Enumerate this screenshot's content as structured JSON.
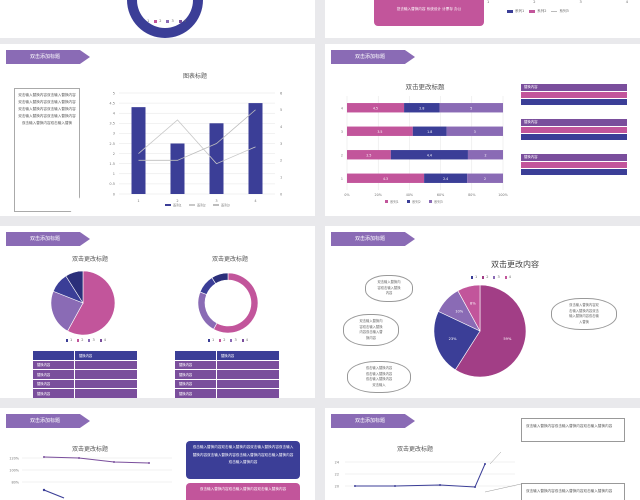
{
  "tag_label": "双击添加标题",
  "slide1": {
    "legend": [
      "1",
      "2",
      "3",
      "4"
    ]
  },
  "slide2": {
    "note": "您去输入替换内容 系统设计 计票存 办公",
    "tick_labels": [
      "1",
      "2",
      "3",
      "4"
    ],
    "legend": [
      "系列1",
      "系列2",
      "系列3"
    ]
  },
  "slide3": {
    "textbox": "双击输入替换内容双击输入替换内容双击输入替换内容双击输入替换内容双击输入替换内容双击输入替换内容双击输入替换内容双击输入替换内容双击输入替换内容双击输入替换",
    "chart_title": "图表标题",
    "legend": [
      "系列1",
      "系列2",
      "系列3"
    ]
  },
  "slide4": {
    "chart_title": "双击更改标题",
    "legend": [
      "系列1",
      "系列2",
      "系列3"
    ],
    "info_header": "替换内容",
    "info_rows": 3
  },
  "slide5": {
    "chart1_title": "双击更改标题",
    "chart2_title": "双击更改标题",
    "legend": [
      "1",
      "2",
      "3",
      "4"
    ],
    "table_header": "替换内容",
    "table_row_label": "替换内容",
    "table_rows": 4
  },
  "slide6": {
    "title": "双击更改内容",
    "legend": [
      "1",
      "2",
      "3",
      "4"
    ],
    "cloud1": "双击输入替换内\n容双击输入替换\n内容",
    "cloud2": "双击输入替换内\n容双击输入替换\n内容双击输入替\n换内容",
    "cloud3": "双击输入替换内容\n双击输入替换内容\n双击输入替换内容\n双击输入",
    "cloud4": "双击输入替换内容双\n击输入替换内容双击\n输入替换内容双击输\n入替换"
  },
  "slide7": {
    "chart_title": "双击更改标题",
    "box1": "双击输入替换内容双击输入替换内容双击输入替换内容双击输入替换内容双击输入替换内容双击输入替换内容双击输入替换内容双击输入替换内容",
    "box2": "双击输入替换内容双击输入替换内容双击输入替换内容"
  },
  "slide8": {
    "chart_title": "双击更改标题",
    "box1": "双击输入替换内容双击输入替换内容双击输入替换内容",
    "box2": "双击输入替换内容双击输入替换内容双击输入替换内容"
  },
  "colors": {
    "navy": "#3b3e97",
    "pink": "#c2559b",
    "purple": "#8a6bb5",
    "violet": "#7a4e9c",
    "magenta": "#a23e86"
  },
  "chart_data": [
    {
      "type": "bar",
      "title": "图表标题",
      "categories": [
        "1",
        "2",
        "3",
        "4"
      ],
      "series": [
        {
          "name": "系列1",
          "values": [
            4.3,
            2.5,
            3.5,
            4.5
          ]
        },
        {
          "name": "系列2",
          "values": [
            2.4,
            4.4,
            1.8,
            2.8
          ]
        },
        {
          "name": "系列3",
          "values": [
            2.0,
            2.0,
            3.0,
            5.0
          ]
        }
      ],
      "ylim": [
        0,
        5
      ],
      "y2lim": [
        0,
        6
      ],
      "yticks": [
        "0",
        "0.5",
        "1",
        "1.5",
        "2",
        "2.5",
        "3",
        "3.5",
        "4",
        "4.5",
        "5"
      ],
      "y2ticks": [
        "0",
        "1",
        "2",
        "3",
        "4",
        "5",
        "6"
      ]
    },
    {
      "type": "bar",
      "title": "双击更改标题",
      "orientation": "horizontal-stacked-percent",
      "categories": [
        "1",
        "2",
        "3",
        "4"
      ],
      "series": [
        {
          "name": "系列1",
          "values": [
            4.3,
            2.5,
            3.5,
            4.5
          ]
        },
        {
          "name": "系列2",
          "values": [
            2.4,
            4.4,
            1.8,
            2.8
          ]
        },
        {
          "name": "系列3",
          "values": [
            2,
            2,
            3,
            5
          ]
        }
      ],
      "xticks": [
        "0%",
        "20%",
        "40%",
        "60%",
        "80%",
        "100%"
      ]
    },
    {
      "type": "pie",
      "title": "双击更改标题",
      "categories": [
        "1",
        "2",
        "3",
        "4"
      ],
      "values": [
        58,
        23,
        10,
        9
      ]
    },
    {
      "type": "pie",
      "title": "双击更改标题",
      "categories": [
        "1",
        "2",
        "3",
        "4"
      ],
      "values": [
        58,
        23,
        10,
        9
      ]
    },
    {
      "type": "pie",
      "title": "双击更改内容",
      "categories": [
        "1",
        "2",
        "3",
        "4"
      ],
      "values": [
        59,
        23,
        10,
        8
      ],
      "data_labels": [
        "59%",
        "23%",
        "10%",
        "8%"
      ]
    },
    {
      "type": "line",
      "title": "双击更改标题",
      "yticks": [
        "120%",
        "100%",
        "80%"
      ]
    },
    {
      "type": "line",
      "title": "双击更改标题",
      "yticks": [
        "24",
        "22",
        "20"
      ]
    }
  ]
}
